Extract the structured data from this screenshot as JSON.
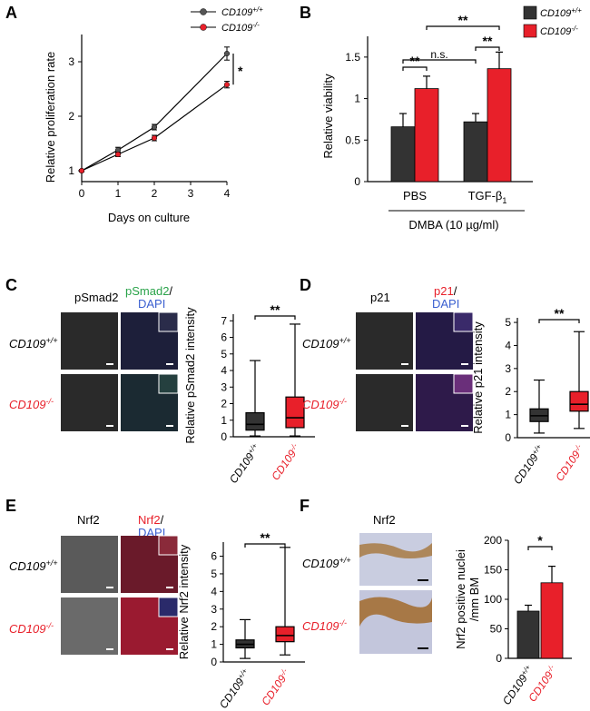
{
  "colors": {
    "wt": "#333333",
    "ko": "#e8202a",
    "green": "#2aa34a",
    "blue": "#3a5fd0"
  },
  "panels": {
    "A": {
      "letter": "A"
    },
    "B": {
      "letter": "B"
    },
    "C": {
      "letter": "C",
      "label_black": "pSmad2",
      "label_colored": "pSmad2",
      "slash": "/",
      "label_dapi": "DAPI"
    },
    "D": {
      "letter": "D",
      "label_black": "p21",
      "label_colored": "p21",
      "slash": "/",
      "label_dapi": "DAPI"
    },
    "E": {
      "letter": "E",
      "label_black": "Nrf2",
      "label_colored": "Nrf2",
      "slash": "/",
      "label_dapi": "DAPI"
    },
    "F": {
      "letter": "F",
      "label_black": "Nrf2"
    }
  },
  "genotype": {
    "wt": "CD109",
    "wt_sup": "+/+",
    "ko": "CD109",
    "ko_sup": "-/-"
  },
  "chart_data": [
    {
      "id": "A",
      "type": "line",
      "xlabel": "Days on culture",
      "ylabel": "Relative proliferation rate",
      "xlim": [
        0,
        4
      ],
      "ylim": [
        0.8,
        3.5
      ],
      "xticks": [
        "0",
        "1",
        "2",
        "3",
        "4"
      ],
      "yticks": [
        "1",
        "2",
        "3"
      ],
      "legend_position": "top-right",
      "series": [
        {
          "name": "CD109+/+",
          "x": [
            0,
            1,
            2,
            4
          ],
          "y": [
            1.0,
            1.38,
            1.8,
            3.15
          ],
          "err": [
            0.02,
            0.05,
            0.05,
            0.12
          ],
          "color": "#555555"
        },
        {
          "name": "CD109-/-",
          "x": [
            0,
            1,
            2,
            4
          ],
          "y": [
            1.0,
            1.3,
            1.6,
            2.58
          ],
          "err": [
            0.02,
            0.04,
            0.05,
            0.06
          ],
          "color": "#e8202a"
        }
      ],
      "annotations": [
        "*"
      ]
    },
    {
      "id": "B",
      "type": "bar",
      "ylabel": "Relative viability",
      "xlabel": "DMBA (10 µg/ml)",
      "categories": [
        "PBS",
        "TGF-β1"
      ],
      "ylim": [
        0,
        1.75
      ],
      "yticks": [
        "0",
        "0.5",
        "1",
        "1.5"
      ],
      "series": [
        {
          "name": "CD109+/+",
          "values": [
            0.66,
            0.72
          ],
          "err": [
            0.16,
            0.1
          ],
          "color": "#333333"
        },
        {
          "name": "CD109-/-",
          "values": [
            1.12,
            1.36
          ],
          "err": [
            0.15,
            0.2
          ],
          "color": "#e8202a"
        }
      ],
      "legend_position": "top-right",
      "annotations": [
        "**",
        "n.s.",
        "**",
        "**"
      ]
    },
    {
      "id": "C",
      "type": "box",
      "ylabel": "Relative pSmad2 intensity",
      "ylim": [
        0,
        7.4
      ],
      "yticks": [
        "0",
        "1",
        "2",
        "3",
        "4",
        "5",
        "6",
        "7"
      ],
      "groups": [
        {
          "name": "CD109+/+",
          "min": 0.05,
          "q1": 0.4,
          "median": 0.75,
          "q3": 1.45,
          "max": 4.6,
          "color": "#333333"
        },
        {
          "name": "CD109-/-",
          "min": 0.05,
          "q1": 0.55,
          "median": 1.15,
          "q3": 2.4,
          "max": 6.8,
          "color": "#e8202a"
        }
      ],
      "annotations": [
        "**"
      ]
    },
    {
      "id": "D",
      "type": "box",
      "ylabel": "Relative p21 intensity",
      "ylim": [
        0,
        5.2
      ],
      "yticks": [
        "0",
        "1",
        "2",
        "3",
        "4",
        "5"
      ],
      "groups": [
        {
          "name": "CD109+/+",
          "min": 0.2,
          "q1": 0.7,
          "median": 0.95,
          "q3": 1.25,
          "max": 2.5,
          "color": "#333333"
        },
        {
          "name": "CD109-/-",
          "min": 0.4,
          "q1": 1.15,
          "median": 1.45,
          "q3": 2.0,
          "max": 4.6,
          "color": "#e8202a"
        }
      ],
      "annotations": [
        "**"
      ]
    },
    {
      "id": "E",
      "type": "box",
      "ylabel": "Relative Nrf2 intensity",
      "ylim": [
        0,
        6.8
      ],
      "yticks": [
        "0",
        "1",
        "2",
        "3",
        "4",
        "5",
        "6"
      ],
      "groups": [
        {
          "name": "CD109+/+",
          "min": 0.2,
          "q1": 0.8,
          "median": 1.0,
          "q3": 1.25,
          "max": 2.4,
          "color": "#333333"
        },
        {
          "name": "CD109-/-",
          "min": 0.4,
          "q1": 1.15,
          "median": 1.5,
          "q3": 2.0,
          "max": 6.5,
          "color": "#e8202a"
        }
      ],
      "annotations": [
        "**"
      ]
    },
    {
      "id": "F",
      "type": "bar",
      "ylabel": "Nrf2 positive nuclei /mm BM",
      "ylabel_lines": [
        "Nrf2 positive nuclei",
        "/mm BM"
      ],
      "ylim": [
        0,
        200
      ],
      "yticks": [
        "0",
        "50",
        "100",
        "150",
        "200"
      ],
      "categories": [
        "CD109+/+",
        "CD109-/-"
      ],
      "values": [
        80,
        128
      ],
      "err": [
        10,
        28
      ],
      "colors": [
        "#333333",
        "#e8202a"
      ],
      "annotations": [
        "*"
      ]
    }
  ]
}
